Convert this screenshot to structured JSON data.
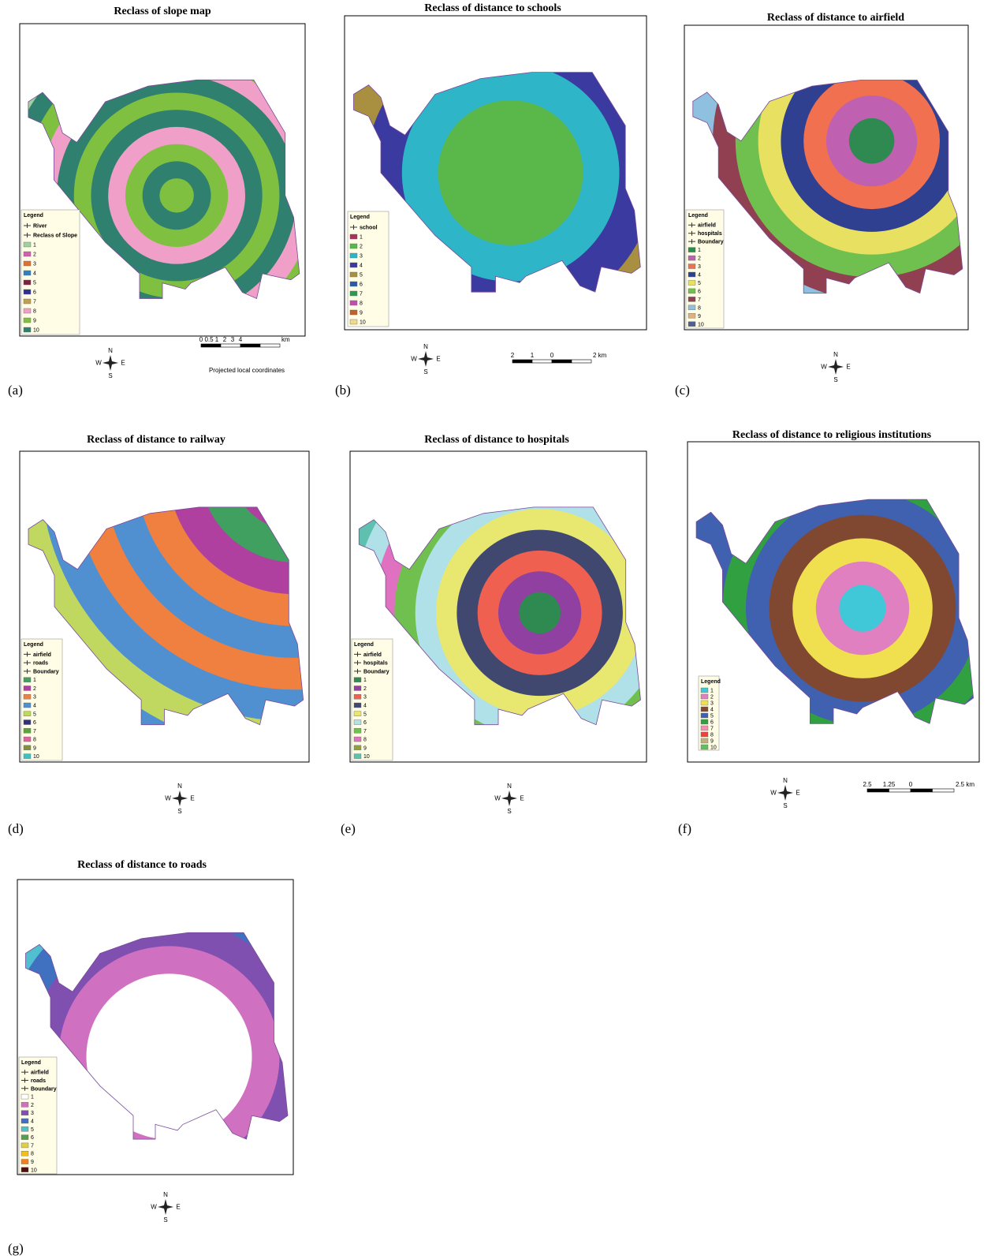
{
  "panels": [
    {
      "label": "(a)",
      "title": "Reclass of slope map",
      "legend": {
        "title": "Legend",
        "entries": [
          {
            "label": "River"
          },
          {
            "label": "Reclass of Slope"
          },
          {
            "label": "1",
            "color": "#9ed29e"
          },
          {
            "label": "2",
            "color": "#d060b0"
          },
          {
            "label": "3",
            "color": "#e07030"
          },
          {
            "label": "4",
            "color": "#3080c0"
          },
          {
            "label": "5",
            "color": "#802040"
          },
          {
            "label": "6",
            "color": "#303090"
          },
          {
            "label": "7",
            "color": "#c0a050"
          },
          {
            "label": "8",
            "color": "#f0a0c8"
          },
          {
            "label": "9",
            "color": "#80c040"
          },
          {
            "label": "10",
            "color": "#308070"
          }
        ]
      },
      "compass": [
        "N",
        "W",
        "E",
        "S"
      ],
      "scale": {
        "labels": [
          "0",
          "0.5",
          "1",
          "2",
          "3",
          "4"
        ],
        "unit": "km"
      },
      "note": "Projected local coordinates"
    },
    {
      "label": "(b)",
      "title": "Reclass of distance to schools",
      "legend": {
        "title": "Legend",
        "entries": [
          {
            "label": "school"
          },
          {
            "label": "1",
            "color": "#a8325a"
          },
          {
            "label": "2",
            "color": "#5ab84a"
          },
          {
            "label": "3",
            "color": "#2fb5c8"
          },
          {
            "label": "4",
            "color": "#3a3aa0"
          },
          {
            "label": "5",
            "color": "#a89040"
          },
          {
            "label": "6",
            "color": "#2b5aa8"
          },
          {
            "label": "7",
            "color": "#2e9a50"
          },
          {
            "label": "8",
            "color": "#c050b0"
          },
          {
            "label": "9",
            "color": "#c0602a"
          },
          {
            "label": "10",
            "color": "#f0d890"
          }
        ]
      },
      "compass": [
        "N",
        "W",
        "E",
        "S"
      ],
      "scale": {
        "labels": [
          "2",
          "1",
          "0"
        ],
        "unit": "2 km"
      }
    },
    {
      "label": "(c)",
      "title": "Reclass of distance to airfield",
      "legend": {
        "title": "Legend",
        "entries": [
          {
            "label": "airfield"
          },
          {
            "label": "hospitals"
          },
          {
            "label": "Boundary"
          },
          {
            "label": "1",
            "color": "#2e8a50"
          },
          {
            "label": "2",
            "color": "#c060b0"
          },
          {
            "label": "3",
            "color": "#f07050"
          },
          {
            "label": "4",
            "color": "#304090"
          },
          {
            "label": "5",
            "color": "#e8e060"
          },
          {
            "label": "6",
            "color": "#70c050"
          },
          {
            "label": "7",
            "color": "#904050"
          },
          {
            "label": "8",
            "color": "#90c0e0"
          },
          {
            "label": "9",
            "color": "#e0b080"
          },
          {
            "label": "10",
            "color": "#506090"
          }
        ]
      },
      "compass": [
        "N",
        "W",
        "E",
        "S"
      ]
    },
    {
      "label": "(d)",
      "title": "Reclass of distance to railway",
      "legend": {
        "title": "Legend",
        "entries": [
          {
            "label": "airfield"
          },
          {
            "label": "roads"
          },
          {
            "label": "Boundary"
          },
          {
            "label": "1",
            "color": "#40a060"
          },
          {
            "label": "2",
            "color": "#b040a0"
          },
          {
            "label": "3",
            "color": "#f08040"
          },
          {
            "label": "4",
            "color": "#5090d0"
          },
          {
            "label": "5",
            "color": "#c0d860"
          },
          {
            "label": "6",
            "color": "#303080"
          },
          {
            "label": "7",
            "color": "#60a040"
          },
          {
            "label": "8",
            "color": "#e060a0"
          },
          {
            "label": "9",
            "color": "#809040"
          },
          {
            "label": "10",
            "color": "#40c0c0"
          }
        ]
      },
      "compass": [
        "N",
        "W",
        "E",
        "S"
      ]
    },
    {
      "label": "(e)",
      "title": "Reclass of distance to hospitals",
      "legend": {
        "title": "Legend",
        "entries": [
          {
            "label": "airfield"
          },
          {
            "label": "hospitals"
          },
          {
            "label": "Boundary"
          },
          {
            "label": "1",
            "color": "#2e8a50"
          },
          {
            "label": "2",
            "color": "#9040a0"
          },
          {
            "label": "3",
            "color": "#f06050"
          },
          {
            "label": "4",
            "color": "#404870"
          },
          {
            "label": "5",
            "color": "#e8e870"
          },
          {
            "label": "6",
            "color": "#b0e0e8"
          },
          {
            "label": "7",
            "color": "#70c050"
          },
          {
            "label": "8",
            "color": "#e070c0"
          },
          {
            "label": "9",
            "color": "#90a040"
          },
          {
            "label": "10",
            "color": "#60c0b0"
          }
        ]
      },
      "compass": [
        "N",
        "W",
        "E",
        "S"
      ]
    },
    {
      "label": "(f)",
      "title": "Reclass of distance to religious institutions",
      "legend": {
        "title": "Legend",
        "entries": [
          {
            "label": "1",
            "color": "#40c8d8"
          },
          {
            "label": "2",
            "color": "#e080c0"
          },
          {
            "label": "3",
            "color": "#f0e050"
          },
          {
            "label": "4",
            "color": "#804830"
          },
          {
            "label": "5",
            "color": "#4060b0"
          },
          {
            "label": "6",
            "color": "#30a040"
          },
          {
            "label": "7",
            "color": "#f090b0"
          },
          {
            "label": "8",
            "color": "#f04040"
          },
          {
            "label": "9",
            "color": "#c0b080"
          },
          {
            "label": "10",
            "color": "#60c060"
          }
        ]
      },
      "compass": [
        "N",
        "W",
        "E",
        "S"
      ],
      "scale": {
        "labels": [
          "2.5",
          "1.25",
          "0"
        ],
        "unit": "2.5 km"
      }
    },
    {
      "label": "(g)",
      "title": "Reclass of distance to roads",
      "legend": {
        "title": "Legend",
        "entries": [
          {
            "label": "airfield"
          },
          {
            "label": "roads"
          },
          {
            "label": "Boundary"
          },
          {
            "label": "1",
            "color": "#ffffff"
          },
          {
            "label": "2",
            "color": "#d070c0"
          },
          {
            "label": "3",
            "color": "#8050b0"
          },
          {
            "label": "4",
            "color": "#4070c0"
          },
          {
            "label": "5",
            "color": "#50c0d0"
          },
          {
            "label": "6",
            "color": "#50a050"
          },
          {
            "label": "7",
            "color": "#e0d040"
          },
          {
            "label": "8",
            "color": "#f0c020"
          },
          {
            "label": "9",
            "color": "#f08020"
          },
          {
            "label": "10",
            "color": "#501010"
          }
        ]
      },
      "compass": [
        "N",
        "W",
        "E",
        "S"
      ]
    }
  ]
}
